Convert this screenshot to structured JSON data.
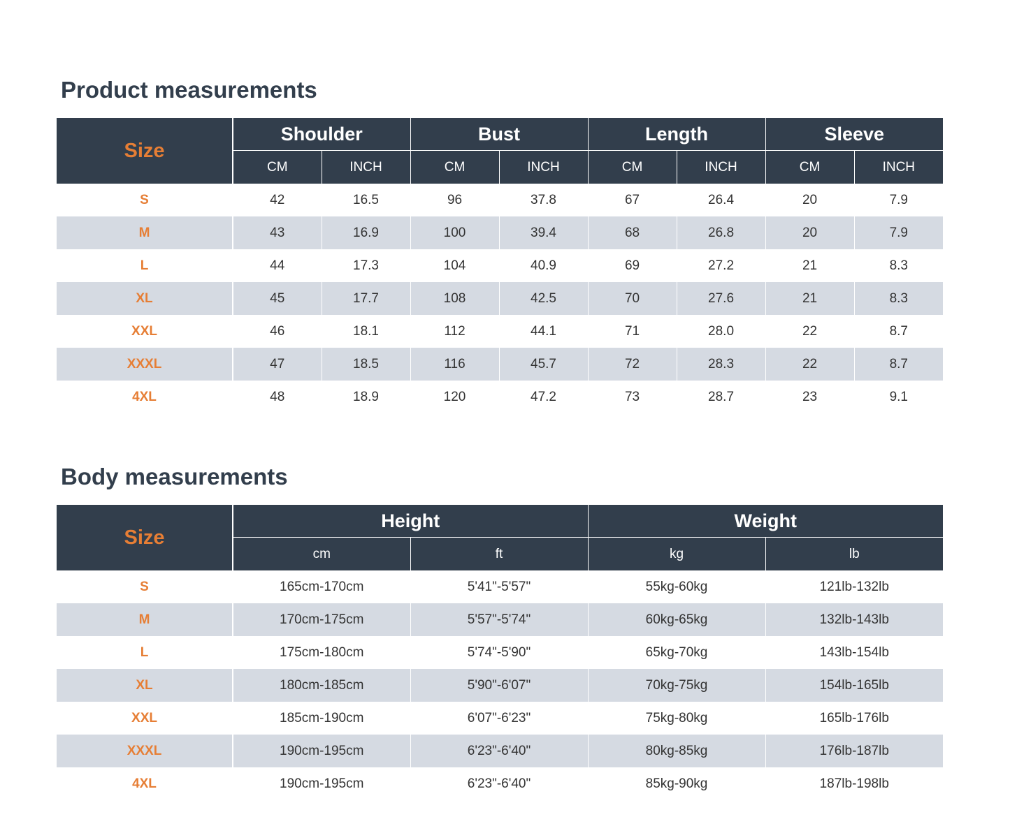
{
  "product": {
    "title": "Product measurements",
    "size_label": "Size",
    "groups": [
      "Shoulder",
      "Bust",
      "Length",
      "Sleeve"
    ],
    "units": [
      "CM",
      "INCH",
      "CM",
      "INCH",
      "CM",
      "INCH",
      "CM",
      "INCH"
    ],
    "rows": [
      {
        "size": "S",
        "values": [
          "42",
          "16.5",
          "96",
          "37.8",
          "67",
          "26.4",
          "20",
          "7.9"
        ]
      },
      {
        "size": "M",
        "values": [
          "43",
          "16.9",
          "100",
          "39.4",
          "68",
          "26.8",
          "20",
          "7.9"
        ]
      },
      {
        "size": "L",
        "values": [
          "44",
          "17.3",
          "104",
          "40.9",
          "69",
          "27.2",
          "21",
          "8.3"
        ]
      },
      {
        "size": "XL",
        "values": [
          "45",
          "17.7",
          "108",
          "42.5",
          "70",
          "27.6",
          "21",
          "8.3"
        ]
      },
      {
        "size": "XXL",
        "values": [
          "46",
          "18.1",
          "112",
          "44.1",
          "71",
          "28.0",
          "22",
          "8.7"
        ]
      },
      {
        "size": "XXXL",
        "values": [
          "47",
          "18.5",
          "116",
          "45.7",
          "72",
          "28.3",
          "22",
          "8.7"
        ]
      },
      {
        "size": "4XL",
        "values": [
          "48",
          "18.9",
          "120",
          "47.2",
          "73",
          "28.7",
          "23",
          "9.1"
        ]
      }
    ]
  },
  "body": {
    "title": "Body measurements",
    "size_label": "Size",
    "groups": [
      "Height",
      "Weight"
    ],
    "units": [
      "cm",
      "ft",
      "kg",
      "lb"
    ],
    "rows": [
      {
        "size": "S",
        "values": [
          "165cm-170cm",
          "5'41\"-5'57\"",
          "55kg-60kg",
          "121lb-132lb"
        ]
      },
      {
        "size": "M",
        "values": [
          "170cm-175cm",
          "5'57\"-5'74\"",
          "60kg-65kg",
          "132lb-143lb"
        ]
      },
      {
        "size": "L",
        "values": [
          "175cm-180cm",
          "5'74\"-5'90\"",
          "65kg-70kg",
          "143lb-154lb"
        ]
      },
      {
        "size": "XL",
        "values": [
          "180cm-185cm",
          "5'90\"-6'07\"",
          "70kg-75kg",
          "154lb-165lb"
        ]
      },
      {
        "size": "XXL",
        "values": [
          "185cm-190cm",
          "6'07\"-6'23\"",
          "75kg-80kg",
          "165lb-176lb"
        ]
      },
      {
        "size": "XXXL",
        "values": [
          "190cm-195cm",
          "6'23\"-6'40\"",
          "80kg-85kg",
          "176lb-187lb"
        ]
      },
      {
        "size": "4XL",
        "values": [
          "190cm-195cm",
          "6'23\"-6'40\"",
          "85kg-90kg",
          "187lb-198lb"
        ]
      }
    ]
  },
  "colors": {
    "header_bg": "#323e4c",
    "size_accent": "#e67e35",
    "stripe_bg": "#d5dae2",
    "title_color": "#323e4c"
  }
}
